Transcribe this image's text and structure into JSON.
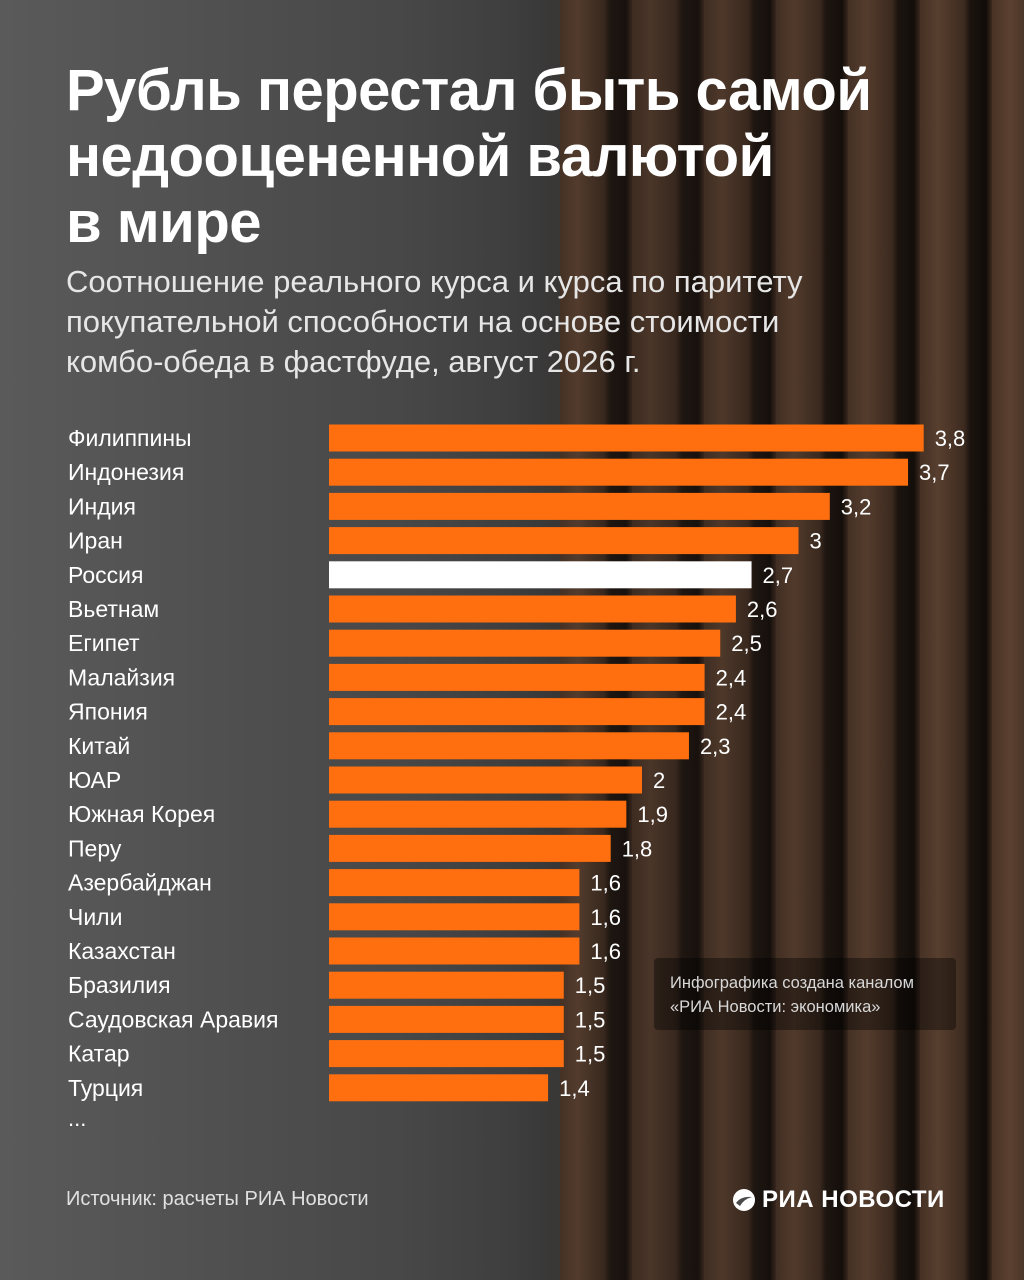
{
  "header": {
    "title": "Рубль перестал быть самой\nнедооцененной валютой\nв мире",
    "subtitle": "Соотношение реального курса и курса по паритету\nпокупательной способности на основе стоимости\nкомбо-обеда в фастфуде, август 2026 г."
  },
  "chart_data": {
    "type": "bar",
    "orientation": "horizontal",
    "categories": [
      "Филиппины",
      "Индонезия",
      "Индия",
      "Иран",
      "Россия",
      "Вьетнам",
      "Египет",
      "Малайзия",
      "Япония",
      "Китай",
      "ЮАР",
      "Южная Корея",
      "Перу",
      "Азербайджан",
      "Чили",
      "Казахстан",
      "Бразилия",
      "Саудовская Аравия",
      "Катар",
      "Турция"
    ],
    "values": [
      3.8,
      3.7,
      3.2,
      3.0,
      2.7,
      2.6,
      2.5,
      2.4,
      2.4,
      2.3,
      2.0,
      1.9,
      1.8,
      1.6,
      1.6,
      1.6,
      1.5,
      1.5,
      1.5,
      1.4
    ],
    "value_labels": [
      "3,8",
      "3,7",
      "3,2",
      "3",
      "2,7",
      "2,6",
      "2,5",
      "2,4",
      "2,4",
      "2,3",
      "2",
      "1,9",
      "1,8",
      "1,6",
      "1,6",
      "1,6",
      "1,5",
      "1,5",
      "1,5",
      "1,4"
    ],
    "highlight_category": "Россия",
    "bar_color": "#ff6f0f",
    "highlight_color": "#ffffff",
    "truncation_marker": "...",
    "grid": false,
    "legend": "none"
  },
  "footer": {
    "credit": "Инфографика создана каналом\n«РИА Новости: экономика»",
    "source": "Источник: расчеты РИА Новости",
    "logo_text": "РИА НОВОСТИ"
  }
}
